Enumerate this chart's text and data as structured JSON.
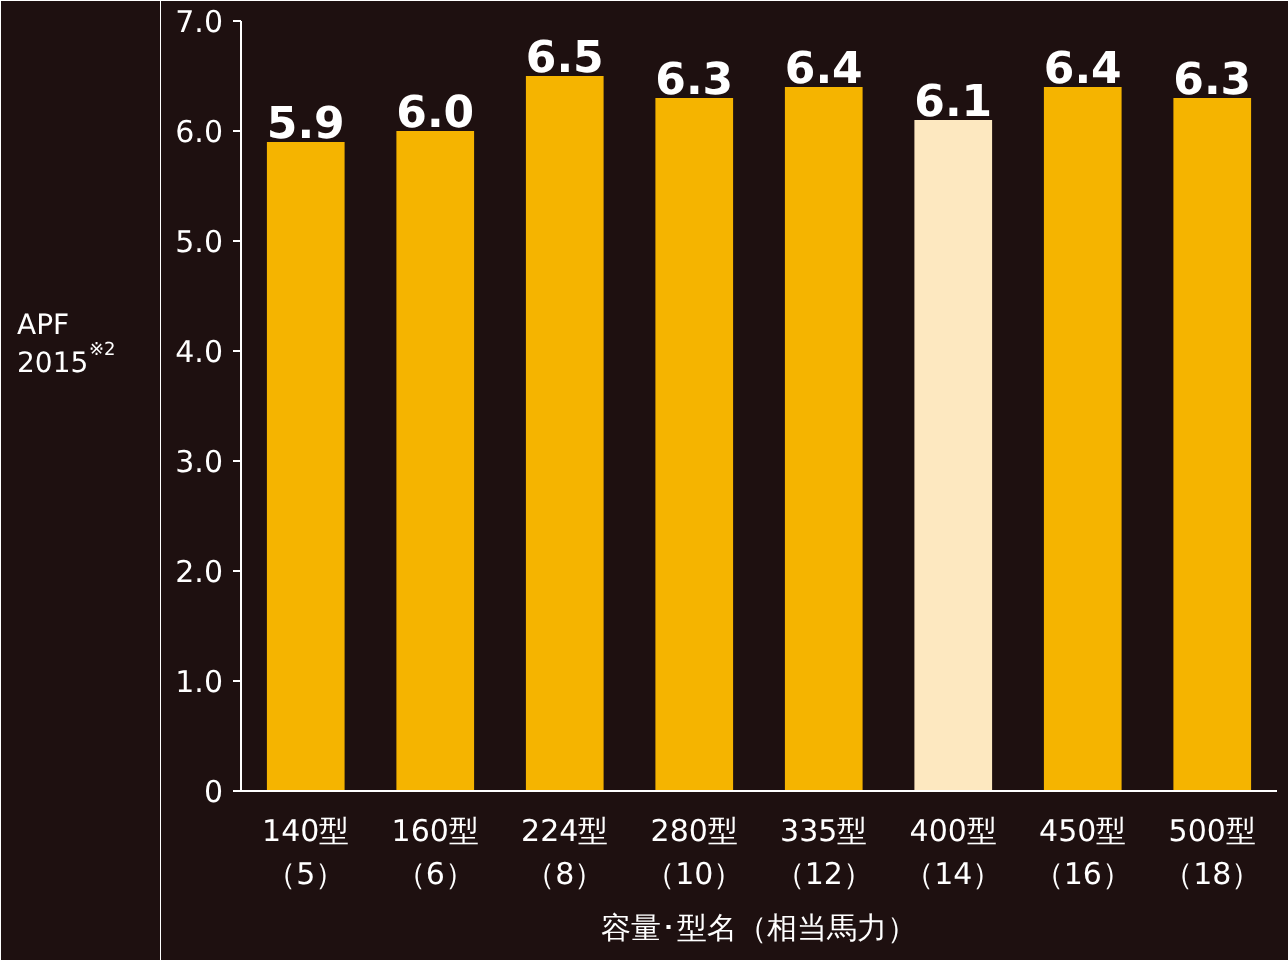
{
  "chart_data": {
    "type": "bar",
    "categories": [
      "140型（5）",
      "160型（6）",
      "224型（8）",
      "280型（10）",
      "335型（12）",
      "400型（14）",
      "450型（16）",
      "500型（18）"
    ],
    "values": [
      5.9,
      6.0,
      6.5,
      6.3,
      6.4,
      6.1,
      6.4,
      6.3
    ],
    "colors": [
      "#f5b400",
      "#f5b400",
      "#f5b400",
      "#f5b400",
      "#f5b400",
      "#fde8c0",
      "#f5b400",
      "#f5b400"
    ],
    "value_labels": [
      "5.9",
      "6.0",
      "6.5",
      "6.3",
      "6.4",
      "6.1",
      "6.4",
      "6.3"
    ],
    "xlabel": "容量･型名（相当馬力）",
    "ylabel": "APF 2015$^{※2}$",
    "ylim": [
      0,
      7.0
    ],
    "yticks": [
      0,
      {
        "value": 1,
        "label": "1.0"
      },
      {
        "value": 2,
        "label": "2.0"
      },
      {
        "value": 3,
        "label": "3.0"
      },
      {
        "value": 4,
        "label": "4.0"
      },
      {
        "value": 5,
        "label": "5.0"
      },
      {
        "value": 6,
        "label": "6.0"
      },
      {
        "value": 7,
        "label": "7.0"
      }
    ],
    "grid": false
  }
}
